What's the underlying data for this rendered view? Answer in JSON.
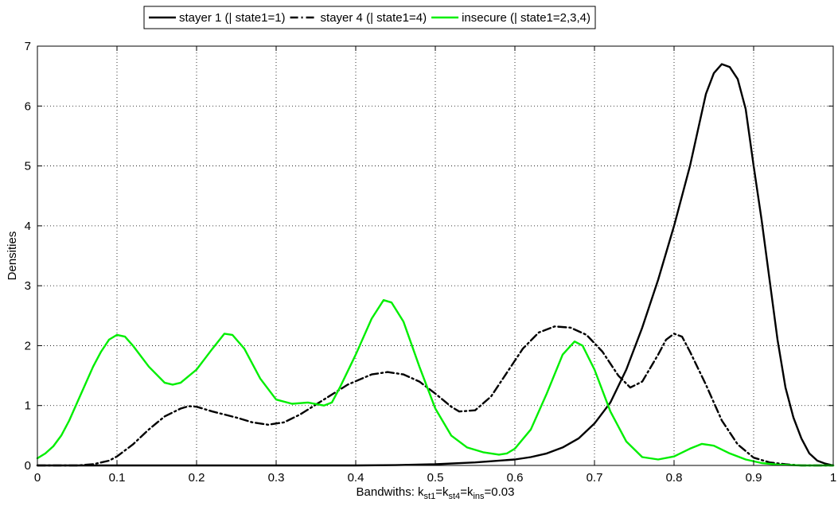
{
  "chart_data": {
    "type": "line",
    "title": "",
    "xlabel": "Bandwiths: k",
    "xlabel_parts": {
      "prefix": "Bandwiths: k",
      "sub1": "st1",
      "eq1": "=k",
      "sub2": "st4",
      "eq2": "=k",
      "sub3": "ins",
      "suffix": "=0.03"
    },
    "ylabel": "Densities",
    "xlim": [
      0,
      1
    ],
    "ylim": [
      0,
      7
    ],
    "xticks": [
      "0",
      "0.1",
      "0.2",
      "0.3",
      "0.4",
      "0.5",
      "0.6",
      "0.7",
      "0.8",
      "0.9",
      "1"
    ],
    "yticks": [
      "0",
      "1",
      "2",
      "3",
      "4",
      "5",
      "6",
      "7"
    ],
    "grid": true,
    "legend_position": "top",
    "series": [
      {
        "name": "stayer 1 (| state1=1)",
        "color": "#000000",
        "style": "solid",
        "points": [
          [
            0,
            0
          ],
          [
            0.1,
            0
          ],
          [
            0.2,
            0
          ],
          [
            0.3,
            0
          ],
          [
            0.4,
            0
          ],
          [
            0.45,
            0.005
          ],
          [
            0.5,
            0.02
          ],
          [
            0.55,
            0.05
          ],
          [
            0.6,
            0.1
          ],
          [
            0.62,
            0.14
          ],
          [
            0.64,
            0.2
          ],
          [
            0.66,
            0.3
          ],
          [
            0.68,
            0.45
          ],
          [
            0.7,
            0.7
          ],
          [
            0.72,
            1.05
          ],
          [
            0.74,
            1.6
          ],
          [
            0.76,
            2.3
          ],
          [
            0.78,
            3.1
          ],
          [
            0.8,
            4.0
          ],
          [
            0.82,
            5.0
          ],
          [
            0.83,
            5.6
          ],
          [
            0.84,
            6.2
          ],
          [
            0.85,
            6.55
          ],
          [
            0.86,
            6.7
          ],
          [
            0.87,
            6.65
          ],
          [
            0.88,
            6.45
          ],
          [
            0.89,
            5.95
          ],
          [
            0.9,
            5.0
          ],
          [
            0.91,
            4.1
          ],
          [
            0.92,
            3.1
          ],
          [
            0.93,
            2.1
          ],
          [
            0.94,
            1.3
          ],
          [
            0.95,
            0.8
          ],
          [
            0.96,
            0.45
          ],
          [
            0.97,
            0.2
          ],
          [
            0.98,
            0.08
          ],
          [
            0.99,
            0.03
          ],
          [
            1.0,
            0
          ]
        ]
      },
      {
        "name": "stayer 4 (| state1=4)",
        "color": "#000000",
        "style": "dashdot",
        "points": [
          [
            0,
            0
          ],
          [
            0.05,
            0
          ],
          [
            0.07,
            0.02
          ],
          [
            0.09,
            0.08
          ],
          [
            0.1,
            0.15
          ],
          [
            0.12,
            0.35
          ],
          [
            0.14,
            0.6
          ],
          [
            0.16,
            0.82
          ],
          [
            0.18,
            0.95
          ],
          [
            0.19,
            0.99
          ],
          [
            0.2,
            0.98
          ],
          [
            0.22,
            0.9
          ],
          [
            0.25,
            0.8
          ],
          [
            0.27,
            0.72
          ],
          [
            0.29,
            0.68
          ],
          [
            0.31,
            0.72
          ],
          [
            0.33,
            0.85
          ],
          [
            0.36,
            1.1
          ],
          [
            0.39,
            1.35
          ],
          [
            0.42,
            1.52
          ],
          [
            0.44,
            1.56
          ],
          [
            0.46,
            1.52
          ],
          [
            0.48,
            1.4
          ],
          [
            0.5,
            1.2
          ],
          [
            0.52,
            0.98
          ],
          [
            0.53,
            0.9
          ],
          [
            0.55,
            0.92
          ],
          [
            0.57,
            1.15
          ],
          [
            0.59,
            1.55
          ],
          [
            0.61,
            1.95
          ],
          [
            0.63,
            2.22
          ],
          [
            0.65,
            2.32
          ],
          [
            0.67,
            2.3
          ],
          [
            0.69,
            2.18
          ],
          [
            0.71,
            1.9
          ],
          [
            0.73,
            1.5
          ],
          [
            0.745,
            1.3
          ],
          [
            0.76,
            1.4
          ],
          [
            0.78,
            1.85
          ],
          [
            0.79,
            2.1
          ],
          [
            0.8,
            2.2
          ],
          [
            0.81,
            2.15
          ],
          [
            0.82,
            1.9
          ],
          [
            0.84,
            1.35
          ],
          [
            0.86,
            0.75
          ],
          [
            0.88,
            0.35
          ],
          [
            0.9,
            0.13
          ],
          [
            0.92,
            0.05
          ],
          [
            0.94,
            0.02
          ],
          [
            0.96,
            0
          ],
          [
            1.0,
            0
          ]
        ]
      },
      {
        "name": "insecure (| state1=2,3,4)",
        "color": "#00ee00",
        "style": "solid",
        "points": [
          [
            0,
            0.12
          ],
          [
            0.01,
            0.2
          ],
          [
            0.02,
            0.32
          ],
          [
            0.03,
            0.5
          ],
          [
            0.04,
            0.75
          ],
          [
            0.05,
            1.05
          ],
          [
            0.06,
            1.35
          ],
          [
            0.07,
            1.65
          ],
          [
            0.08,
            1.9
          ],
          [
            0.09,
            2.1
          ],
          [
            0.1,
            2.18
          ],
          [
            0.11,
            2.15
          ],
          [
            0.12,
            2.0
          ],
          [
            0.14,
            1.65
          ],
          [
            0.16,
            1.38
          ],
          [
            0.17,
            1.35
          ],
          [
            0.18,
            1.38
          ],
          [
            0.2,
            1.6
          ],
          [
            0.22,
            1.95
          ],
          [
            0.235,
            2.2
          ],
          [
            0.245,
            2.18
          ],
          [
            0.26,
            1.95
          ],
          [
            0.28,
            1.45
          ],
          [
            0.3,
            1.1
          ],
          [
            0.32,
            1.03
          ],
          [
            0.34,
            1.05
          ],
          [
            0.36,
            1.0
          ],
          [
            0.37,
            1.05
          ],
          [
            0.38,
            1.3
          ],
          [
            0.4,
            1.85
          ],
          [
            0.42,
            2.45
          ],
          [
            0.435,
            2.76
          ],
          [
            0.445,
            2.72
          ],
          [
            0.46,
            2.4
          ],
          [
            0.48,
            1.65
          ],
          [
            0.5,
            0.95
          ],
          [
            0.52,
            0.5
          ],
          [
            0.54,
            0.3
          ],
          [
            0.56,
            0.22
          ],
          [
            0.58,
            0.18
          ],
          [
            0.59,
            0.2
          ],
          [
            0.6,
            0.28
          ],
          [
            0.62,
            0.6
          ],
          [
            0.64,
            1.2
          ],
          [
            0.66,
            1.85
          ],
          [
            0.675,
            2.07
          ],
          [
            0.685,
            2.0
          ],
          [
            0.7,
            1.6
          ],
          [
            0.72,
            0.9
          ],
          [
            0.74,
            0.4
          ],
          [
            0.76,
            0.14
          ],
          [
            0.78,
            0.1
          ],
          [
            0.8,
            0.15
          ],
          [
            0.82,
            0.28
          ],
          [
            0.835,
            0.36
          ],
          [
            0.85,
            0.33
          ],
          [
            0.87,
            0.2
          ],
          [
            0.89,
            0.1
          ],
          [
            0.91,
            0.04
          ],
          [
            0.93,
            0.015
          ],
          [
            0.96,
            0
          ],
          [
            1.0,
            0
          ]
        ]
      }
    ]
  }
}
